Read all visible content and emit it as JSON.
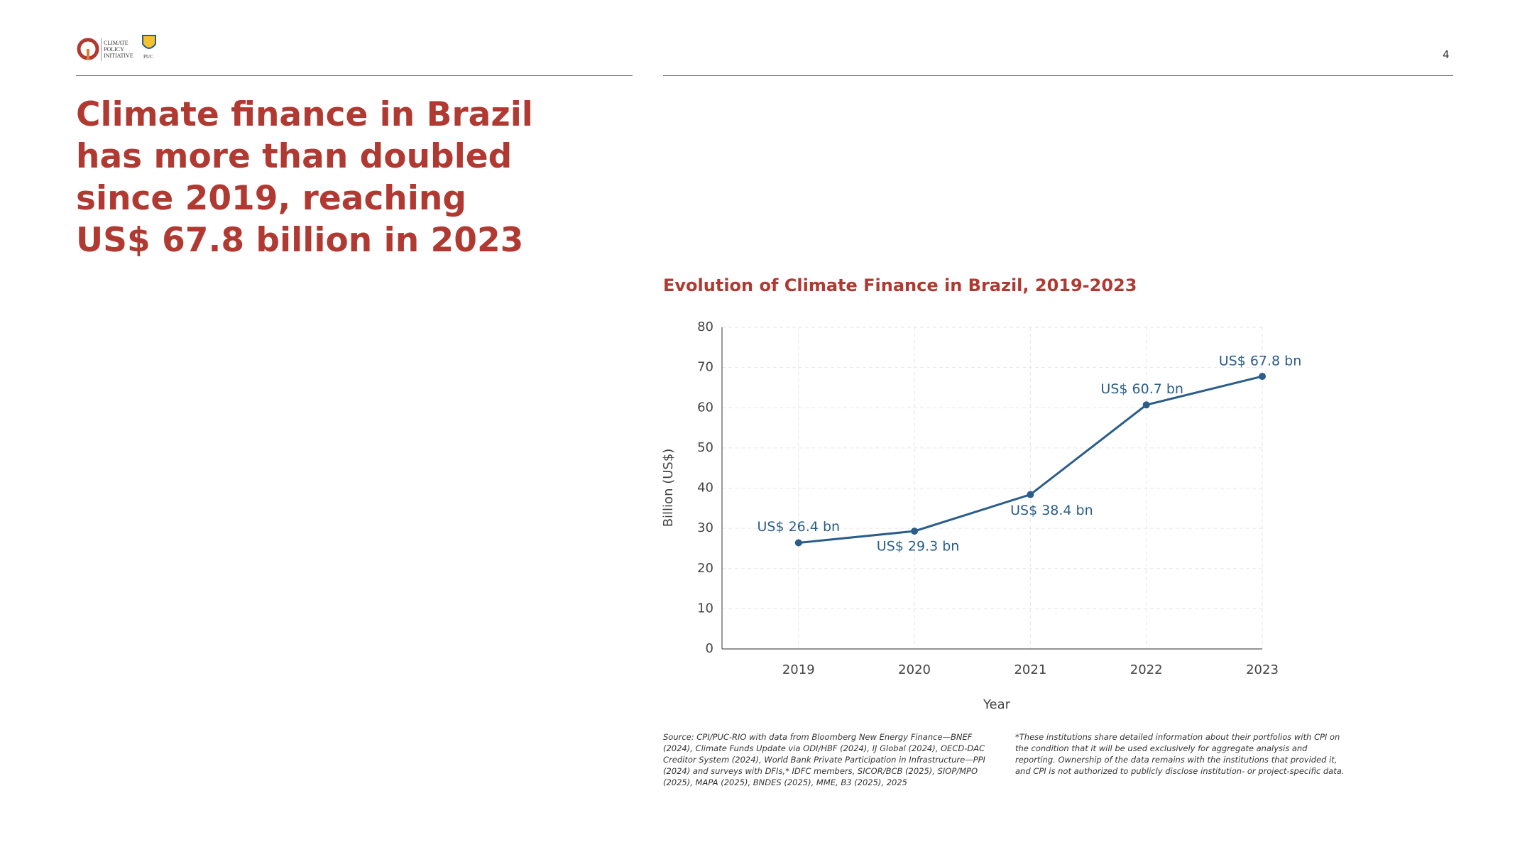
{
  "header": {
    "logo_lines": [
      "CLIMATE",
      "POLICY",
      "INITIATIVE"
    ],
    "partner_logo": "PUC",
    "page_number": "4"
  },
  "headline": [
    "Climate finance in Brazil",
    "has more than doubled",
    "since 2019, reaching",
    "US$ 67.8 billion in 2023"
  ],
  "chart_data": {
    "type": "line",
    "title": "Evolution of Climate Finance in Brazil, 2019-2023",
    "x_label": "Year",
    "y_label": "Billion (US$)",
    "x": [
      2019,
      2020,
      2021,
      2022,
      2023
    ],
    "xlim": [
      2018.34,
      2023
    ],
    "xticks": [
      2019,
      2020,
      2021,
      2022,
      2023
    ],
    "ylim": [
      0,
      80
    ],
    "yticks": [
      0,
      10,
      20,
      30,
      40,
      50,
      60,
      70,
      80
    ],
    "grid": true,
    "series": [
      {
        "name": "Climate finance",
        "color": "#2a5d8a",
        "values": [
          26.4,
          29.3,
          38.4,
          60.7,
          67.8
        ],
        "value_labels": [
          "US$ 26.4 bn",
          "US$ 29.3 bn",
          "US$ 38.4 bn",
          "US$ 60.7 bn",
          "US$ 67.8 bn"
        ]
      }
    ]
  },
  "footnotes": {
    "source": "Source: CPI/PUC-RIO with data from Bloomberg New Energy Finance—BNEF (2024), Climate Funds Update via ODI/HBF (2024), IJ Global (2024), OECD-DAC Creditor System (2024), World Bank Private Participation in Infrastructure—PPI (2024) and surveys with DFIs,* IDFC members, SICOR/BCB (2025), SIOP/MPO (2025), MAPA (2025), BNDES (2025), MME, B3 (2025), 2025",
    "note": "*These institutions share detailed information about their portfolios with CPI on the condition that it will be used exclusively for aggregate analysis and reporting. Ownership of the data remains with the institutions that provided it, and CPI is not authorized to publicly disclose institution- or project-specific data."
  }
}
